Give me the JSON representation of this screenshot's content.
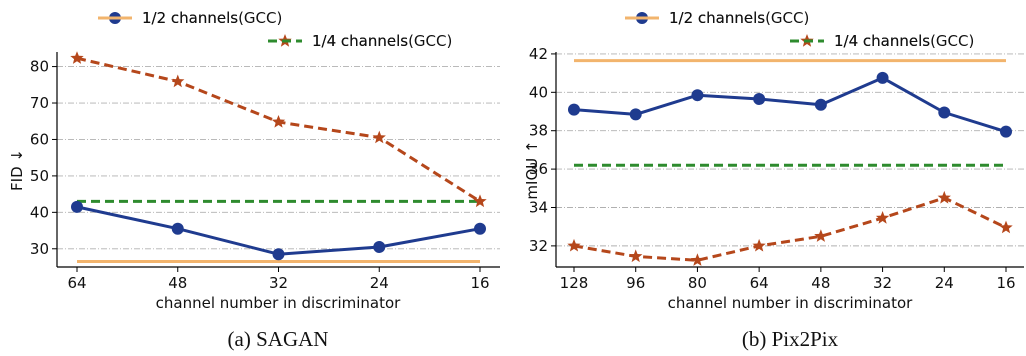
{
  "chart_data": [
    {
      "type": "line",
      "caption": "(a) SAGAN",
      "categories": [
        "64",
        "48",
        "32",
        "24",
        "16"
      ],
      "xlabel": "channel number in discriminator",
      "ylabel": "FID ↓",
      "ylim": [
        25,
        84
      ],
      "yticks": [
        30,
        40,
        50,
        60,
        70,
        80
      ],
      "grid": "horizontal dash-dot",
      "legend_position": "top",
      "series": [
        {
          "name": "1/2 channels",
          "values": [
            41.5,
            35.5,
            28.5,
            30.5,
            35.5
          ],
          "color": "#1f3b8f",
          "style": "solid",
          "marker": "circle"
        },
        {
          "name": "1/4 channels",
          "values": [
            82.3,
            75.9,
            64.8,
            60.5,
            43.0
          ],
          "color": "#b5471b",
          "style": "dashed",
          "marker": "star"
        },
        {
          "name": "1/2 channels(GCC)",
          "values": [
            26.5,
            26.5,
            26.5,
            26.5,
            26.5
          ],
          "color": "#f2b46d",
          "style": "solid",
          "marker": "none"
        },
        {
          "name": "1/4 channels(GCC)",
          "values": [
            43.0,
            43.0,
            43.0,
            43.0,
            43.0
          ],
          "color": "#2e8b2e",
          "style": "dashed",
          "marker": "none"
        }
      ]
    },
    {
      "type": "line",
      "caption": "(b) Pix2Pix",
      "categories": [
        "128",
        "96",
        "80",
        "64",
        "48",
        "32",
        "24",
        "16"
      ],
      "xlabel": "channel number in discriminator",
      "ylabel": "mIOU ↑",
      "ylim": [
        30.9,
        42.1
      ],
      "yticks": [
        32,
        34,
        36,
        38,
        40,
        42
      ],
      "grid": "horizontal dash-dot",
      "legend_position": "top",
      "series": [
        {
          "name": "1/2 channels",
          "values": [
            39.1,
            38.85,
            39.85,
            39.65,
            39.35,
            40.75,
            38.95,
            37.95
          ],
          "color": "#1f3b8f",
          "style": "solid",
          "marker": "circle"
        },
        {
          "name": "1/4 channels",
          "values": [
            32.0,
            31.45,
            31.25,
            32.0,
            32.5,
            33.45,
            34.5,
            32.95
          ],
          "color": "#b5471b",
          "style": "dashed",
          "marker": "star"
        },
        {
          "name": "1/2 channels(GCC)",
          "values": [
            41.65,
            41.65,
            41.65,
            41.65,
            41.65,
            41.65,
            41.65,
            41.65
          ],
          "color": "#f2b46d",
          "style": "solid",
          "marker": "none"
        },
        {
          "name": "1/4 channels(GCC)",
          "values": [
            36.2,
            36.2,
            36.2,
            36.2,
            36.2,
            36.2,
            36.2,
            36.2
          ],
          "color": "#2e8b2e",
          "style": "dashed",
          "marker": "none"
        }
      ]
    }
  ]
}
